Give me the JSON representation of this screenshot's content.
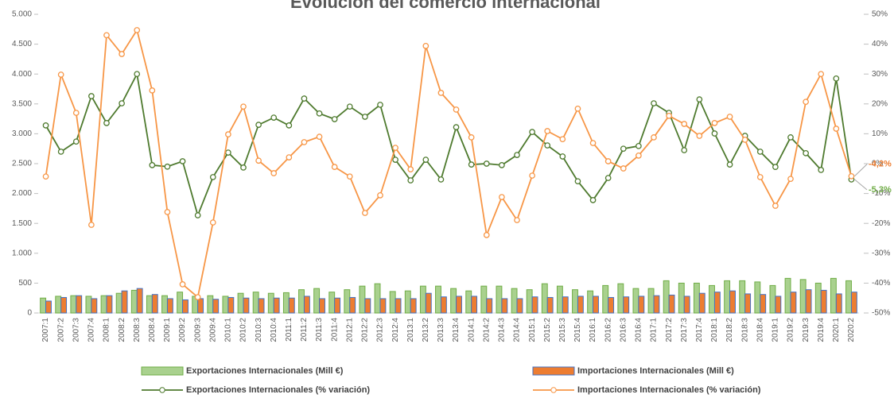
{
  "chart_data": {
    "type": "combo",
    "title": "Evolución del comercio internacional",
    "categories": [
      "2007:1",
      "2007:2",
      "2007:3",
      "2007:4",
      "2008:1",
      "2008:2",
      "2008:3",
      "2008:4",
      "2009:1",
      "2009:2",
      "2009:3",
      "2009:4",
      "2010:1",
      "2010:2",
      "2010:3",
      "2010:4",
      "2011:1",
      "2011:2",
      "2011:3",
      "2011:4",
      "2012:1",
      "2012:2",
      "2012:3",
      "2012:4",
      "2013:1",
      "2013:2",
      "2013:3",
      "2013:4",
      "2014:1",
      "2014:2",
      "2014:3",
      "2014:4",
      "2015:1",
      "2015:2",
      "2015:3",
      "2015:4",
      "2016:1",
      "2016:2",
      "2016:3",
      "2016:4",
      "2017:1",
      "2017:2",
      "2017:3",
      "2017:4",
      "2018:1",
      "2018:2",
      "2018:3",
      "2018:4",
      "2019:1",
      "2019:2",
      "2019:3",
      "2019:4",
      "2020:1",
      "2020:2"
    ],
    "series": [
      {
        "name": "Exportaciones Internacionales (Mill €)",
        "type": "bar",
        "color": "#a9d18e",
        "edgecolor": "#70ad47",
        "values": [
          250,
          280,
          290,
          280,
          290,
          330,
          380,
          290,
          290,
          350,
          280,
          290,
          280,
          330,
          350,
          330,
          340,
          390,
          410,
          350,
          390,
          450,
          490,
          360,
          370,
          450,
          450,
          410,
          370,
          450,
          450,
          410,
          390,
          490,
          450,
          390,
          370,
          460,
          490,
          410,
          410,
          540,
          500,
          500,
          460,
          540,
          540,
          520,
          460,
          580,
          560,
          500,
          580,
          540
        ]
      },
      {
        "name": "Importaciones Internacionales (Mill €)",
        "type": "bar",
        "color": "#ed7d31",
        "edgecolor": "#4472c4",
        "values": [
          200,
          260,
          290,
          240,
          290,
          370,
          410,
          310,
          240,
          220,
          240,
          230,
          260,
          250,
          240,
          250,
          250,
          280,
          240,
          250,
          260,
          240,
          240,
          240,
          240,
          330,
          270,
          280,
          280,
          240,
          240,
          240,
          270,
          260,
          270,
          280,
          280,
          260,
          270,
          280,
          290,
          300,
          280,
          330,
          350,
          370,
          320,
          310,
          280,
          350,
          390,
          380,
          320,
          350
        ]
      },
      {
        "name": "Exportaciones Internacionales (% variación)",
        "type": "line",
        "axis": "y2",
        "color": "#4e7a2e",
        "values": [
          12.8,
          4,
          7.4,
          22.6,
          13.6,
          20.2,
          30,
          -0.5,
          -1,
          0.8,
          -17.3,
          -4.5,
          3.7,
          -1.3,
          13,
          15.4,
          12.8,
          21.8,
          16.8,
          14.9,
          19.1,
          15.7,
          19.7,
          1.3,
          -5.6,
          1.3,
          -5.3,
          12.2,
          -0.3,
          0,
          -0.5,
          2.9,
          10.6,
          6.1,
          2.4,
          -5.9,
          -12.2,
          -4.8,
          5,
          5.9,
          20.2,
          17,
          4.5,
          21.5,
          10.1,
          -0.3,
          9.3,
          4,
          -1.1,
          8.8,
          3.5,
          -2.1,
          28.5,
          -5.3
        ]
      },
      {
        "name": "Importaciones Internacionales (% variación)",
        "type": "line",
        "axis": "y2",
        "color": "#f79646",
        "values": [
          -4.3,
          29.8,
          17,
          -20.5,
          43,
          36.7,
          44.7,
          24.5,
          -16.2,
          -40.4,
          -44.7,
          -19.7,
          9.8,
          19.1,
          1,
          -3.2,
          2.1,
          7.2,
          9,
          -1.1,
          -4.3,
          -16.5,
          -10.6,
          5.3,
          -1.9,
          39.4,
          23.7,
          18.1,
          8.8,
          -23.9,
          -11.2,
          -18.9,
          -4,
          10.9,
          8.2,
          18.4,
          6.9,
          0.8,
          -1.6,
          2.7,
          8.8,
          16,
          13.3,
          9.3,
          13.6,
          15.7,
          8,
          -4.5,
          -14.1,
          -5.1,
          20.7,
          30,
          11.7,
          -4.2
        ]
      }
    ],
    "ylim": [
      0,
      5000
    ],
    "yticks": [
      0,
      500,
      {
        "value": 1000,
        "label": "1.000"
      },
      {
        "value": 1500,
        "label": "1.500"
      },
      {
        "value": 2000,
        "label": "2.000"
      },
      {
        "value": 2500,
        "label": "2.500"
      },
      {
        "value": 3000,
        "label": "3.000"
      },
      {
        "value": 3500,
        "label": "3.500"
      },
      {
        "value": 4000,
        "label": "4.000"
      },
      {
        "value": 4500,
        "label": "4.500"
      },
      {
        "value": 5000,
        "label": "5.000"
      }
    ],
    "y2lim": [
      -50,
      50
    ],
    "y2ticks": [
      {
        "value": -50,
        "label": "-50%"
      },
      {
        "value": -40,
        "label": "-40%"
      },
      {
        "value": -30,
        "label": "-30%"
      },
      {
        "value": -20,
        "label": "-20%"
      },
      {
        "value": -10,
        "label": "-10%"
      },
      {
        "value": 0,
        "label": "0%"
      },
      {
        "value": 10,
        "label": "10%"
      },
      {
        "value": 20,
        "label": "20%"
      },
      {
        "value": 30,
        "label": "30%"
      },
      {
        "value": 40,
        "label": "40%"
      },
      {
        "value": 50,
        "label": "50%"
      }
    ],
    "grid": false,
    "legend": "bottom",
    "annotations": [
      {
        "text": "-4,2%",
        "color": "#ed7d31"
      },
      {
        "text": "-5,3%",
        "color": "#70ad47"
      }
    ]
  }
}
